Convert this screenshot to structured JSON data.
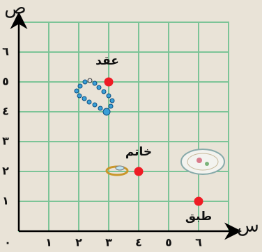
{
  "chart_data": {
    "type": "scatter",
    "x_label": "س",
    "y_label": "ص",
    "x": [
      3,
      4,
      6
    ],
    "values": [
      5,
      2,
      1
    ],
    "point_labels": [
      "عقد",
      "خاتم",
      "طبق"
    ],
    "color": "#ee1c24",
    "grid": true,
    "grid_color": "#7cc497",
    "xlim": [
      0,
      7
    ],
    "ylim": [
      0,
      7
    ],
    "xticks": [
      {
        "value": 0,
        "label": "٠"
      },
      {
        "value": 1,
        "label": "١"
      },
      {
        "value": 2,
        "label": "٢"
      },
      {
        "value": 3,
        "label": "٣"
      },
      {
        "value": 4,
        "label": "٤"
      },
      {
        "value": 5,
        "label": "٥"
      },
      {
        "value": 6,
        "label": "٦"
      }
    ],
    "yticks": [
      {
        "value": 1,
        "label": "١"
      },
      {
        "value": 2,
        "label": "٢"
      },
      {
        "value": 3,
        "label": "٣"
      },
      {
        "value": 4,
        "label": "٤"
      },
      {
        "value": 5,
        "label": "٥"
      },
      {
        "value": 6,
        "label": "٦"
      }
    ]
  }
}
